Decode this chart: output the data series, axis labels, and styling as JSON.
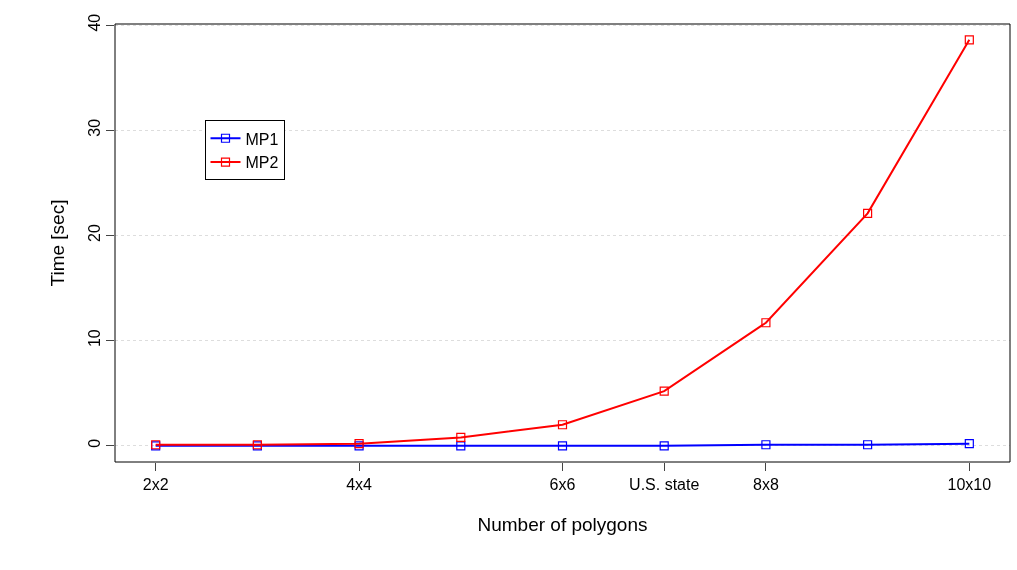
{
  "chart_data": {
    "type": "line",
    "xlabel": "Number of polygons",
    "ylabel": "Time [sec]",
    "categories": [
      "2x2",
      null,
      "4x4",
      null,
      "6x6",
      "U.S. state",
      "8x8",
      null,
      "10x10"
    ],
    "series": [
      {
        "name": "MP1",
        "color": "#0000ff",
        "values": [
          0,
          0,
          0,
          0,
          0,
          0,
          0.1,
          0.1,
          0.2
        ]
      },
      {
        "name": "MP2",
        "color": "#ff0000",
        "values": [
          0.1,
          0.1,
          0.2,
          0.8,
          2.0,
          5.2,
          11.7,
          22.1,
          38.6
        ]
      }
    ],
    "ylim": [
      -1.54,
      40.1
    ],
    "yticks": [
      0,
      10,
      20,
      30,
      40
    ],
    "grid": "y",
    "legend": "top left",
    "marker": "square",
    "line_style": "solid"
  }
}
